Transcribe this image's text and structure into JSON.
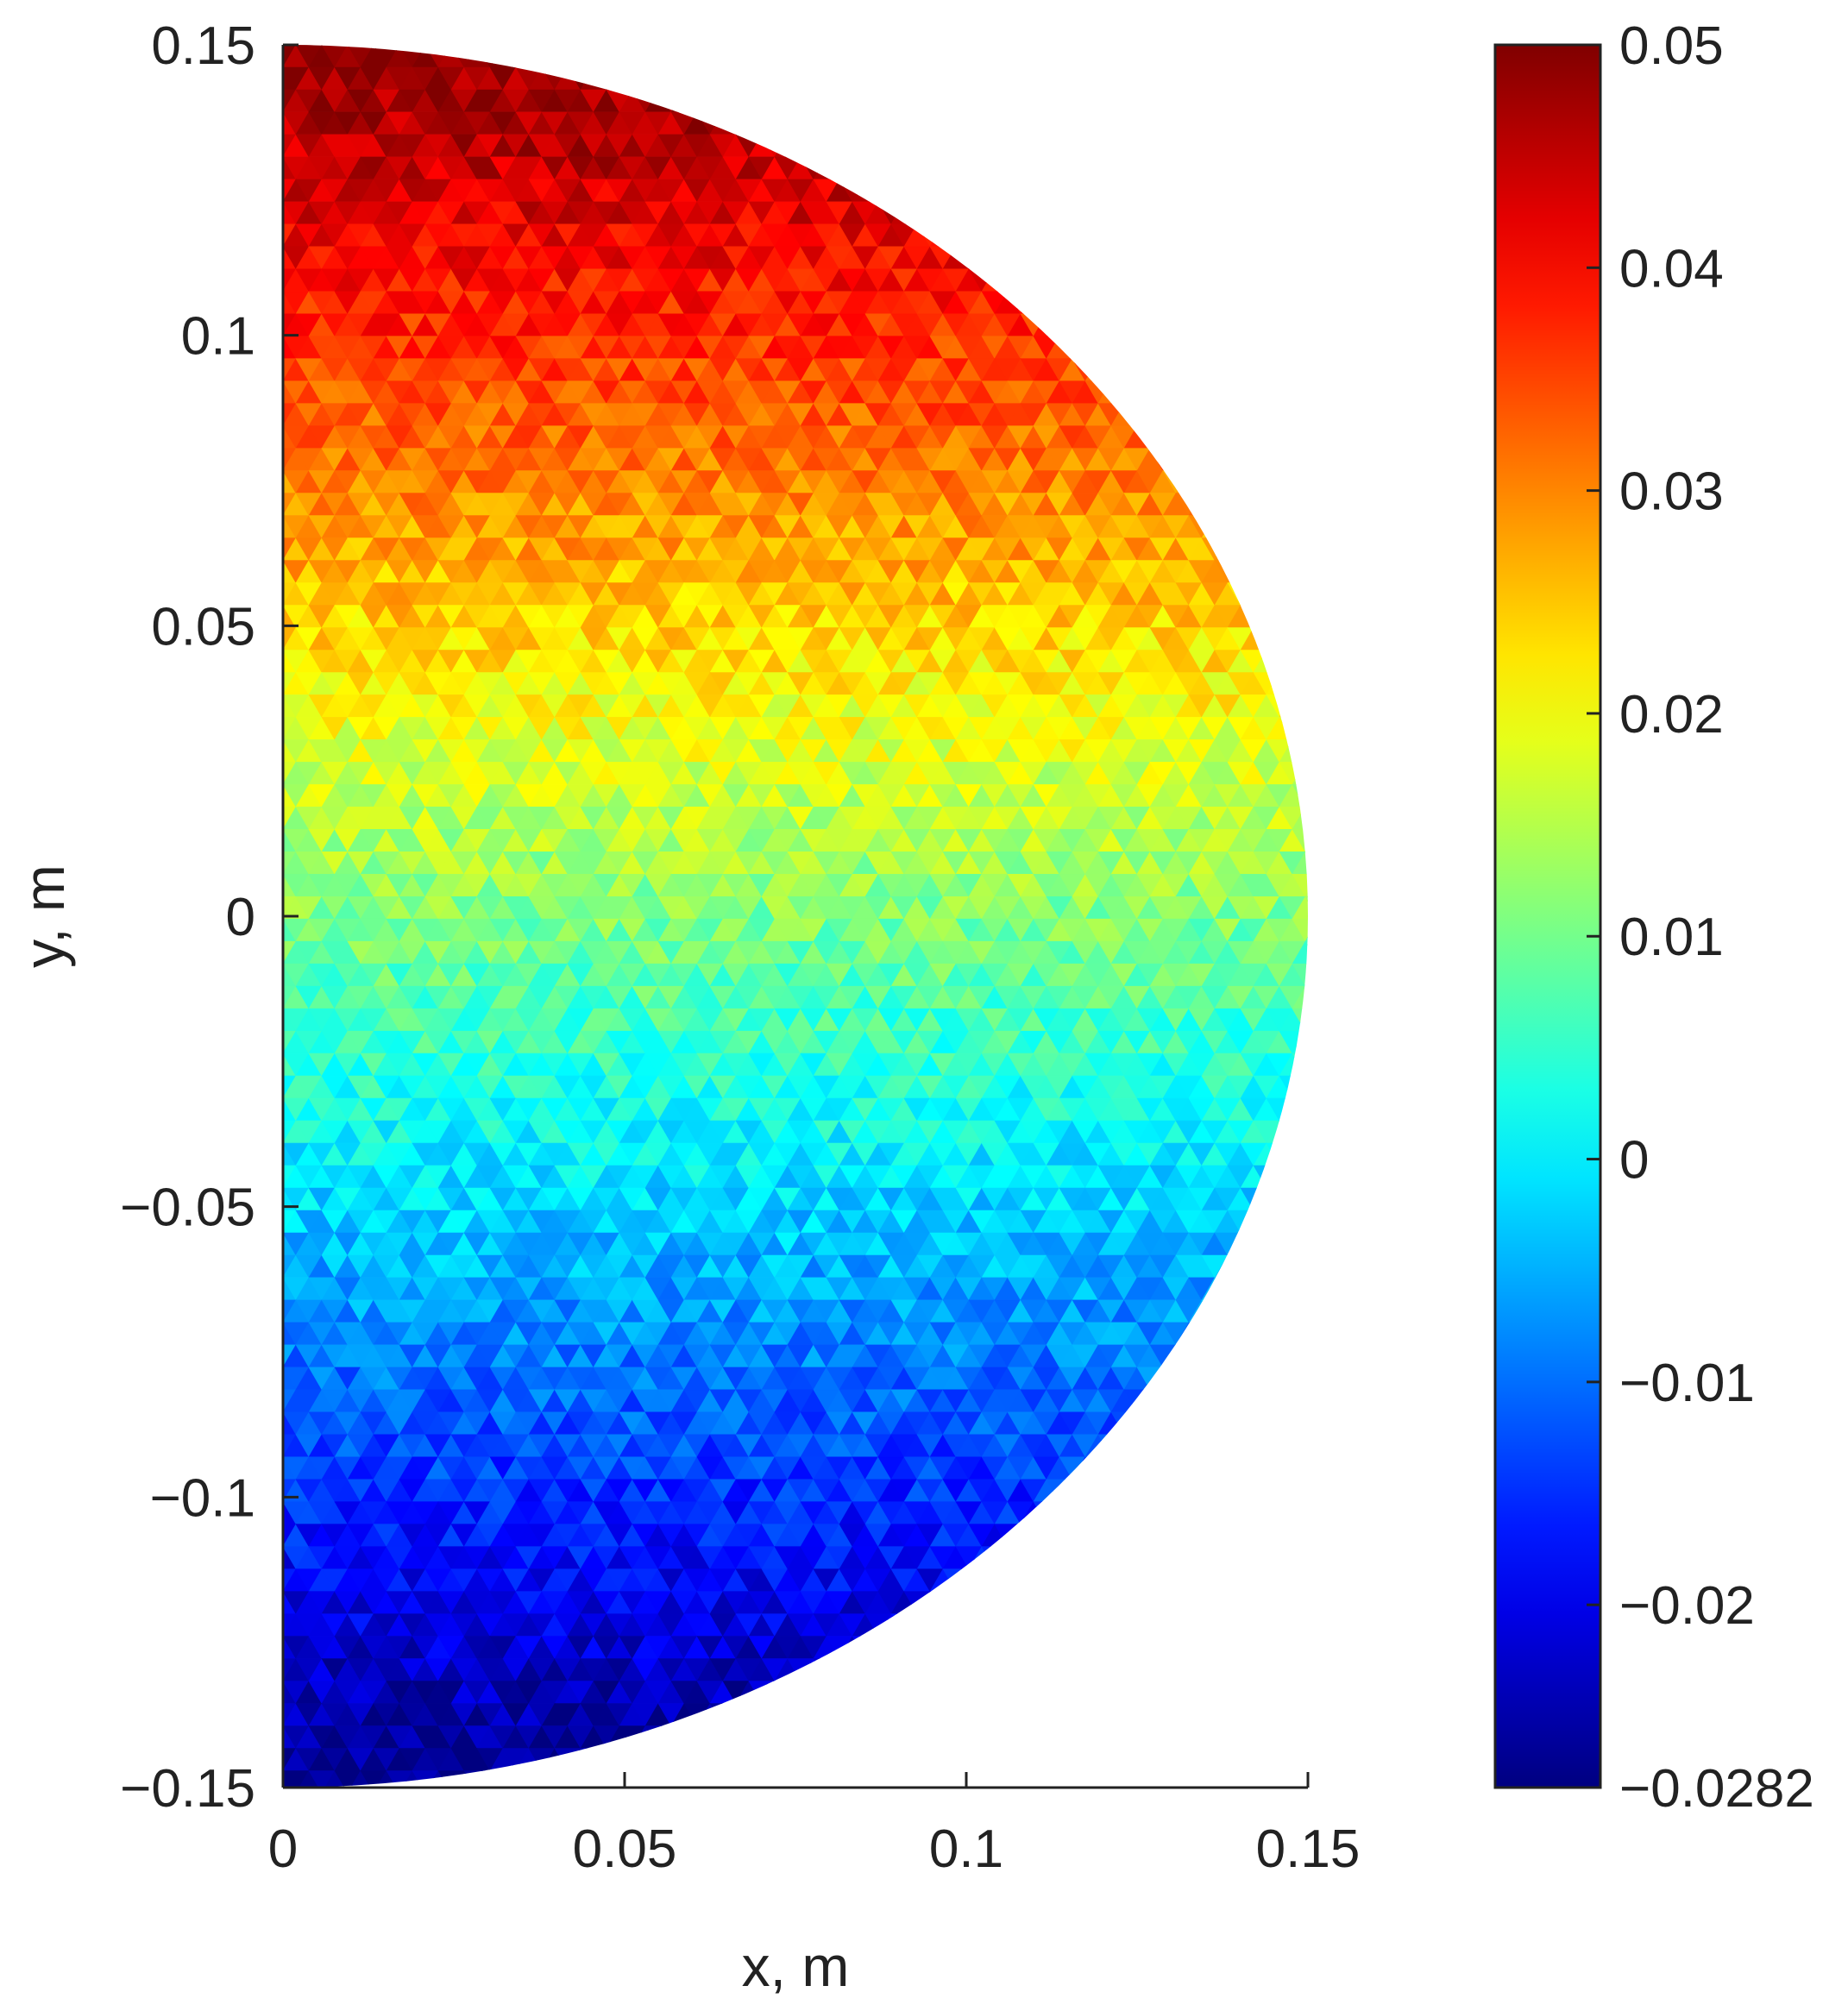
{
  "chart_data": {
    "type": "heatmap",
    "title": "",
    "xlabel": "x, m",
    "ylabel": "y, m",
    "xlim": [
      0,
      0.15
    ],
    "ylim": [
      -0.15,
      0.15
    ],
    "x_ticks": [
      {
        "value": 0,
        "label": "0"
      },
      {
        "value": 0.05,
        "label": "0.05"
      },
      {
        "value": 0.1,
        "label": "0.1"
      },
      {
        "value": 0.15,
        "label": "0.15"
      }
    ],
    "y_ticks": [
      {
        "value": 0.15,
        "label": "0.15"
      },
      {
        "value": 0.1,
        "label": "0.1"
      },
      {
        "value": 0.05,
        "label": "0.05"
      },
      {
        "value": 0,
        "label": "0"
      },
      {
        "value": -0.05,
        "label": "−0.05"
      },
      {
        "value": -0.1,
        "label": "−0.1"
      },
      {
        "value": -0.15,
        "label": "−0.15"
      }
    ],
    "domain_shape": "half-disk",
    "domain_radius": 0.15,
    "mesh": "triangular",
    "field": {
      "description_of_trend": "linear in y",
      "value_at_y_min": -0.0282,
      "value_at_y_max": 0.05
    },
    "colormap": "jet",
    "colorbar": {
      "placement": "right",
      "min": -0.0282,
      "max": 0.05,
      "ticks": [
        {
          "value": 0.05,
          "label": "0.05"
        },
        {
          "value": 0.04,
          "label": "0.04"
        },
        {
          "value": 0.03,
          "label": "0.03"
        },
        {
          "value": 0.02,
          "label": "0.02"
        },
        {
          "value": 0.01,
          "label": "0.01"
        },
        {
          "value": 0,
          "label": "0"
        },
        {
          "value": -0.01,
          "label": "−0.01"
        },
        {
          "value": -0.02,
          "label": "−0.02"
        },
        {
          "value": -0.0282,
          "label": "−0.0282"
        }
      ]
    }
  }
}
